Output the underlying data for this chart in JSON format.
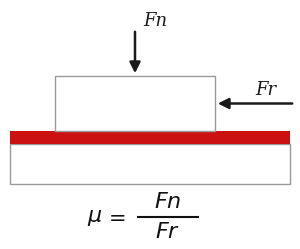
{
  "bg_color": "#ffffff",
  "arrow_color": "#1a1a1a",
  "box_edge_color": "#999999",
  "red_color": "#cc1111",
  "slab_edge_color": "#999999",
  "label_fontsize": 13,
  "formula_fontsize": 14
}
